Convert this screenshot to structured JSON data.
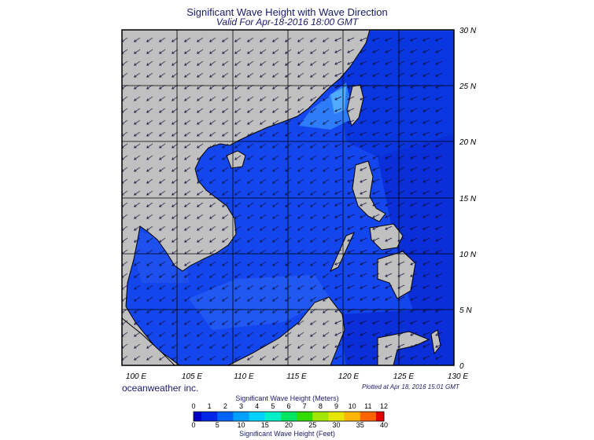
{
  "title": "Significant Wave Height with Wave Direction",
  "subtitle": "Valid For Apr-18-2016 18:00 GMT",
  "lon_labels": [
    "100 E",
    "105 E",
    "110 E",
    "115 E",
    "120 E",
    "125 E",
    "130 E"
  ],
  "lat_labels": [
    "0",
    "5 N",
    "10 N",
    "15 N",
    "20 N",
    "25 N",
    "30 N"
  ],
  "brand": "oceanweather inc.",
  "plotted_note": "Plotted at Apr 18, 2016 15:01 GMT",
  "colorbar": {
    "meters_title": "Significant Wave Height (Meters)",
    "feet_title": "Significant Wave Height (Feet)",
    "meters_ticks": [
      "0",
      "1",
      "2",
      "3",
      "4",
      "5",
      "6",
      "7",
      "8",
      "9",
      "10",
      "11",
      "12"
    ],
    "feet_ticks": [
      "0",
      "5",
      "10",
      "15",
      "20",
      "25",
      "30",
      "35",
      "40"
    ],
    "colors": [
      "#0000c8",
      "#0028e6",
      "#0064ff",
      "#00a0ff",
      "#00d2ff",
      "#00f0c8",
      "#00e664",
      "#32dc00",
      "#a0e600",
      "#e6e600",
      "#ffb400",
      "#ff6400",
      "#e60000"
    ]
  },
  "colors": {
    "land": "#c0c0c0",
    "sea_deep": "#0a2ed8",
    "sea_mid": "#1446ee",
    "sea_light": "#2e6cf6",
    "grid": "#000000",
    "arrow": "#101040"
  }
}
